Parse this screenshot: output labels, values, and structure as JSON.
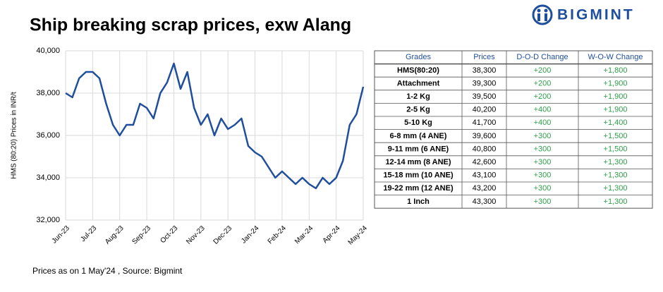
{
  "chart_data": {
    "type": "line",
    "title": "Ship breaking scrap prices, exw Alang",
    "y_label": "HMS (80:20) Prices in INR/t",
    "categories": [
      "Jun-23",
      null,
      null,
      null,
      "Jul-23",
      null,
      null,
      null,
      "Aug-23",
      null,
      null,
      null,
      "Sep-23",
      null,
      null,
      null,
      "Oct-23",
      null,
      null,
      null,
      "Nov-23",
      null,
      null,
      null,
      "Dec-23",
      null,
      null,
      null,
      "Jan-24",
      null,
      null,
      null,
      "Feb-24",
      null,
      null,
      null,
      "Mar-24",
      null,
      null,
      null,
      "Apr-24",
      null,
      null,
      null,
      "May-24"
    ],
    "values": [
      38000,
      37800,
      38700,
      39000,
      39000,
      38700,
      37500,
      36500,
      36000,
      36500,
      36500,
      37500,
      37300,
      36800,
      38000,
      38500,
      39400,
      38200,
      39000,
      37300,
      36500,
      37000,
      36000,
      36800,
      36300,
      36500,
      36800,
      35500,
      35200,
      35000,
      34500,
      34000,
      34300,
      34000,
      33700,
      34000,
      33700,
      33500,
      34000,
      33700,
      34000,
      34800,
      36500,
      37000,
      38300
    ],
    "color": "#1f4e9c",
    "ylim": [
      32000,
      40000
    ],
    "yticks": [
      {
        "value": 32000,
        "label": "32,000"
      },
      {
        "value": 34000,
        "label": "34,000"
      },
      {
        "value": 36000,
        "label": "36,000"
      },
      {
        "value": 38000,
        "label": "38,000"
      },
      {
        "value": 40000,
        "label": "40,000"
      }
    ],
    "grid": true
  },
  "table": {
    "columns": [
      "Grades",
      "Prices",
      "D-O-D Change",
      "W-O-W Change"
    ],
    "rows": [
      [
        "HMS(80:20)",
        "38,300",
        "+200",
        "+1,800"
      ],
      [
        "Attachment",
        "39,300",
        "+200",
        "+1,900"
      ],
      [
        "1-2 Kg",
        "39,500",
        "+200",
        "+1,900"
      ],
      [
        "2-5 Kg",
        "40,200",
        "+400",
        "+1,900"
      ],
      [
        "5-10 Kg",
        "41,700",
        "+400",
        "+1,400"
      ],
      [
        "6-8 mm (4 ANE)",
        "39,600",
        "+300",
        "+1,500"
      ],
      [
        "9-11 mm (6 ANE)",
        "40,800",
        "+300",
        "+1,500"
      ],
      [
        "12-14 mm (8 ANE)",
        "42,600",
        "+300",
        "+1,300"
      ],
      [
        "15-18 mm (10 ANE)",
        "43,100",
        "+300",
        "+1,300"
      ],
      [
        "19-22 mm (12 ANE)",
        "43,200",
        "+300",
        "+1,300"
      ],
      [
        "1 Inch",
        "43,300",
        "+300",
        "+1,300"
      ]
    ]
  },
  "logo": "BIGMINT",
  "footnote": "Prices as on 1 May'24 , Source: Bigmint"
}
